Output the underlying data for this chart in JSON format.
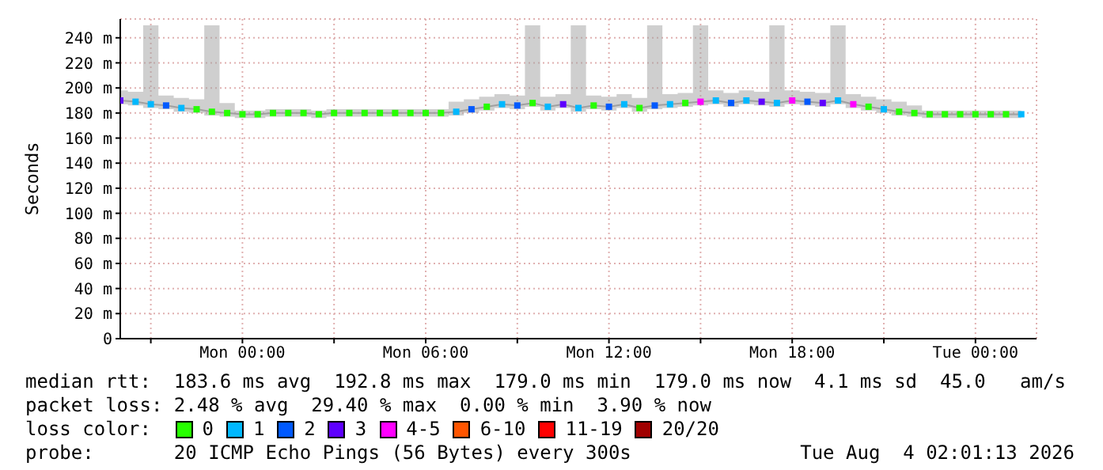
{
  "chart_data": {
    "type": "scatter",
    "ylabel": "Seconds",
    "legend_title": "loss color:",
    "marker": "square",
    "grid": true,
    "legend": "bottom",
    "xlim": [
      "2026-08-02T20:00",
      "2026-08-04T02:00"
    ],
    "xticks": [
      {
        "value": "2026-08-02T21:00",
        "label": null
      },
      {
        "value": "2026-08-03T00:00",
        "label": "Mon 00:00"
      },
      {
        "value": "2026-08-03T03:00",
        "label": null
      },
      {
        "value": "2026-08-03T06:00",
        "label": "Mon 06:00"
      },
      {
        "value": "2026-08-03T09:00",
        "label": null
      },
      {
        "value": "2026-08-03T12:00",
        "label": "Mon 12:00"
      },
      {
        "value": "2026-08-03T15:00",
        "label": null
      },
      {
        "value": "2026-08-03T18:00",
        "label": "Mon 18:00"
      },
      {
        "value": "2026-08-03T21:00",
        "label": null
      },
      {
        "value": "2026-08-04T00:00",
        "label": "Tue 00:00"
      }
    ],
    "ylim": [
      0,
      255
    ],
    "yticks": [
      0,
      {
        "value": 20,
        "label": "20 m"
      },
      {
        "value": 40,
        "label": "40 m"
      },
      {
        "value": 60,
        "label": "60 m"
      },
      {
        "value": 80,
        "label": "80 m"
      },
      {
        "value": 100,
        "label": "100 m"
      },
      {
        "value": 120,
        "label": "120 m"
      },
      {
        "value": 140,
        "label": "140 m"
      },
      {
        "value": 160,
        "label": "160 m"
      },
      {
        "value": 180,
        "label": "180 m"
      },
      {
        "value": 200,
        "label": "200 m"
      },
      {
        "value": 220,
        "label": "220 m"
      },
      {
        "value": 240,
        "label": "240 m"
      }
    ],
    "series": [
      {
        "type": "line",
        "color": "#a0a0a0",
        "marker": "none",
        "x": [
          "2026-08-02T20:00",
          "2026-08-02T20:30",
          "2026-08-02T21:00",
          "2026-08-02T21:30",
          "2026-08-02T22:00",
          "2026-08-02T22:30",
          "2026-08-02T23:00",
          "2026-08-02T23:30",
          "2026-08-03T00:00",
          "2026-08-03T00:30",
          "2026-08-03T01:00",
          "2026-08-03T01:30",
          "2026-08-03T02:00",
          "2026-08-03T02:30",
          "2026-08-03T03:00",
          "2026-08-03T03:30",
          "2026-08-03T04:00",
          "2026-08-03T04:30",
          "2026-08-03T05:00",
          "2026-08-03T05:30",
          "2026-08-03T06:00",
          "2026-08-03T06:30",
          "2026-08-03T07:00",
          "2026-08-03T07:30",
          "2026-08-03T08:00",
          "2026-08-03T08:30",
          "2026-08-03T09:00",
          "2026-08-03T09:30",
          "2026-08-03T10:00",
          "2026-08-03T10:30",
          "2026-08-03T11:00",
          "2026-08-03T11:30",
          "2026-08-03T12:00",
          "2026-08-03T12:30",
          "2026-08-03T13:00",
          "2026-08-03T13:30",
          "2026-08-03T14:00",
          "2026-08-03T14:30",
          "2026-08-03T15:00",
          "2026-08-03T15:30",
          "2026-08-03T16:00",
          "2026-08-03T16:30",
          "2026-08-03T17:00",
          "2026-08-03T17:30",
          "2026-08-03T18:00",
          "2026-08-03T18:30",
          "2026-08-03T19:00",
          "2026-08-03T19:30",
          "2026-08-03T20:00",
          "2026-08-03T20:30",
          "2026-08-03T21:00",
          "2026-08-03T21:30",
          "2026-08-03T22:00",
          "2026-08-03T22:30",
          "2026-08-03T23:00",
          "2026-08-03T23:30",
          "2026-08-04T00:00",
          "2026-08-04T00:30",
          "2026-08-04T01:00",
          "2026-08-04T01:30"
        ],
        "values": [
          190,
          189,
          187,
          186,
          184,
          183,
          181,
          180,
          179,
          179,
          180,
          180,
          180,
          179,
          180,
          180,
          180,
          180,
          180,
          180,
          180,
          180,
          181,
          183,
          185,
          187,
          186,
          188,
          185,
          187,
          184,
          186,
          185,
          187,
          184,
          186,
          187,
          188,
          189,
          190,
          188,
          190,
          189,
          188,
          190,
          189,
          188,
          190,
          187,
          185,
          183,
          181,
          180,
          179,
          179,
          179,
          179,
          179,
          179,
          179
        ],
        "lower": [
          187,
          186,
          184,
          183,
          181,
          180,
          178,
          177,
          176,
          176,
          177,
          177,
          177,
          176,
          177,
          177,
          177,
          177,
          177,
          177,
          177,
          177,
          178,
          180,
          182,
          184,
          183,
          185,
          182,
          184,
          181,
          183,
          182,
          184,
          181,
          183,
          184,
          185,
          186,
          187,
          185,
          187,
          186,
          185,
          187,
          186,
          185,
          187,
          184,
          182,
          180,
          178,
          177,
          176,
          176,
          176,
          176,
          176,
          176,
          176
        ],
        "upper": [
          198,
          197,
          250,
          194,
          192,
          191,
          250,
          188,
          182,
          182,
          183,
          183,
          183,
          182,
          183,
          183,
          183,
          183,
          183,
          183,
          183,
          183,
          189,
          191,
          193,
          195,
          194,
          250,
          193,
          195,
          250,
          194,
          193,
          195,
          192,
          250,
          195,
          196,
          250,
          198,
          196,
          198,
          197,
          250,
          198,
          197,
          196,
          250,
          195,
          193,
          191,
          189,
          186,
          182,
          182,
          182,
          182,
          182,
          182,
          182
        ]
      },
      {
        "name": "0",
        "color": "#26ff00",
        "x": [
          "2026-08-02T22:30",
          "2026-08-02T23:00",
          "2026-08-02T23:30",
          "2026-08-03T00:00",
          "2026-08-03T00:30",
          "2026-08-03T01:00",
          "2026-08-03T01:30",
          "2026-08-03T02:00",
          "2026-08-03T02:30",
          "2026-08-03T03:00",
          "2026-08-03T03:30",
          "2026-08-03T04:00",
          "2026-08-03T04:30",
          "2026-08-03T05:00",
          "2026-08-03T05:30",
          "2026-08-03T06:00",
          "2026-08-03T06:30",
          "2026-08-03T08:00",
          "2026-08-03T09:30",
          "2026-08-03T11:30",
          "2026-08-03T13:00",
          "2026-08-03T14:30",
          "2026-08-03T20:30",
          "2026-08-03T21:30",
          "2026-08-03T22:00",
          "2026-08-03T22:30",
          "2026-08-03T23:00",
          "2026-08-03T23:30",
          "2026-08-04T00:00",
          "2026-08-04T00:30",
          "2026-08-04T01:00"
        ],
        "values": [
          183,
          181,
          180,
          179,
          179,
          180,
          180,
          180,
          179,
          180,
          180,
          180,
          180,
          180,
          180,
          180,
          180,
          185,
          188,
          186,
          184,
          188,
          185,
          181,
          180,
          179,
          179,
          179,
          179,
          179,
          179
        ]
      },
      {
        "name": "1",
        "color": "#00b8ff",
        "x": [
          "2026-08-02T20:30",
          "2026-08-02T21:00",
          "2026-08-02T22:00",
          "2026-08-03T07:00",
          "2026-08-03T08:30",
          "2026-08-03T10:00",
          "2026-08-03T11:00",
          "2026-08-03T12:30",
          "2026-08-03T14:00",
          "2026-08-03T15:30",
          "2026-08-03T16:30",
          "2026-08-03T17:30",
          "2026-08-03T19:30",
          "2026-08-03T21:00",
          "2026-08-04T01:30"
        ],
        "values": [
          189,
          187,
          184,
          181,
          187,
          185,
          184,
          187,
          187,
          190,
          190,
          188,
          190,
          183,
          179
        ]
      },
      {
        "name": "2",
        "color": "#0059ff",
        "x": [
          "2026-08-02T21:30",
          "2026-08-03T07:30",
          "2026-08-03T09:00",
          "2026-08-03T12:00",
          "2026-08-03T13:30",
          "2026-08-03T16:00",
          "2026-08-03T18:30"
        ],
        "values": [
          186,
          183,
          186,
          185,
          186,
          188,
          189
        ]
      },
      {
        "name": "3",
        "color": "#5e00ff",
        "x": [
          "2026-08-02T20:00",
          "2026-08-03T10:30",
          "2026-08-03T17:00",
          "2026-08-03T19:00"
        ],
        "values": [
          190,
          187,
          189,
          188
        ]
      },
      {
        "name": "4-5",
        "color": "#ff00ff",
        "x": [
          "2026-08-03T15:00",
          "2026-08-03T18:00",
          "2026-08-03T20:00"
        ],
        "values": [
          189,
          190,
          187
        ]
      },
      {
        "name": "6-10",
        "color": "#ff5500"
      },
      {
        "name": "11-19",
        "color": "#ff0000"
      },
      {
        "name": "20/20",
        "color": "#a10000"
      }
    ],
    "annotations": [
      "median rtt:  183.6 ms avg  192.8 ms max  179.0 ms min  179.0 ms now  4.1 ms sd  45.0   am/s",
      "packet loss: 2.48 % avg  29.40 % max  0.00 % min  3.90 % now",
      "probe:       20 ICMP Echo Pings (56 Bytes) every 300s",
      "Tue Aug  4 02:01:13 2026"
    ]
  }
}
